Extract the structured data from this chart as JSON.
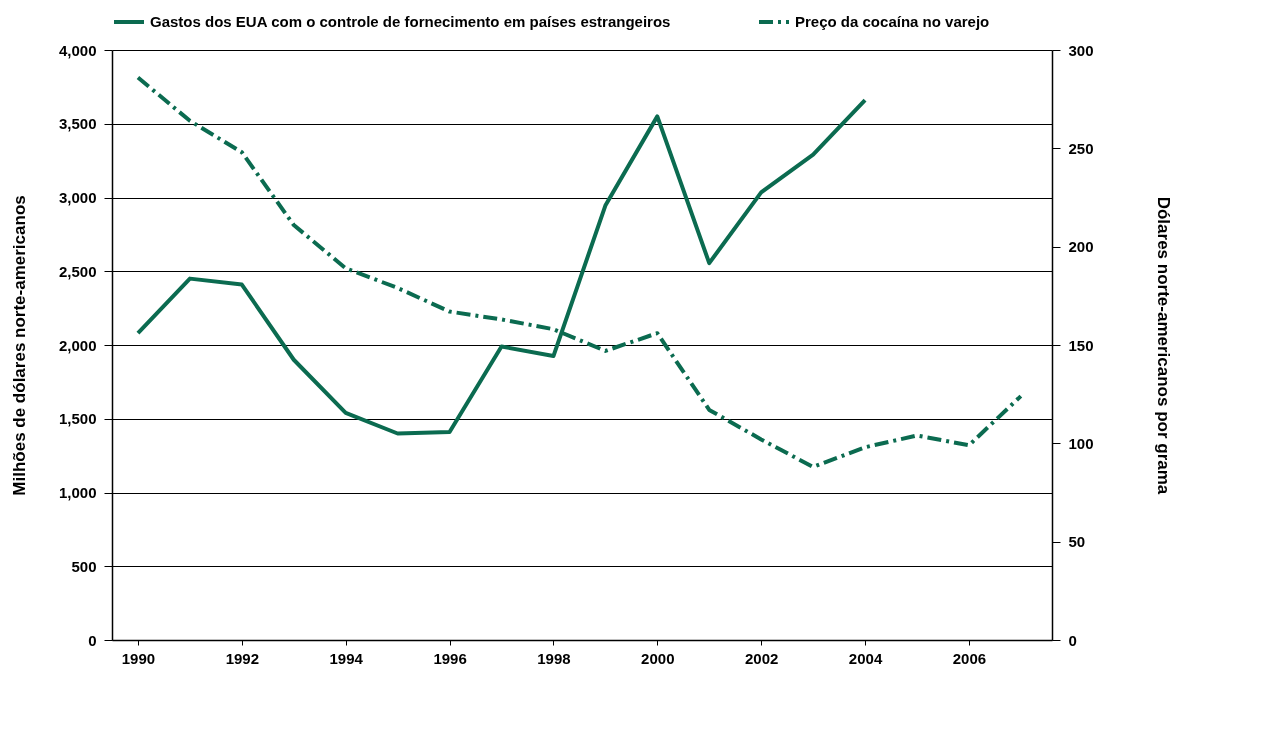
{
  "chart_data": {
    "type": "line",
    "ylabel": "Milhões de dólares norte-americanos",
    "y2label": "Dólares norte-americanos por grama",
    "x": [
      1990,
      1991,
      1992,
      1993,
      1994,
      1995,
      1996,
      1997,
      1998,
      1999,
      2000,
      2001,
      2002,
      2003,
      2004,
      2005,
      2006,
      2007
    ],
    "xlim": [
      1989.5,
      2007.6
    ],
    "xticks": [
      1990,
      1992,
      1994,
      1996,
      1998,
      2000,
      2002,
      2004,
      2006
    ],
    "ylim": [
      0,
      4000
    ],
    "yticks": [
      0,
      500,
      {
        "value": 1000,
        "label": "1,000"
      },
      {
        "value": 1500,
        "label": "1,500"
      },
      {
        "value": 2000,
        "label": "2,000"
      },
      {
        "value": 2500,
        "label": "2,500"
      },
      {
        "value": 3000,
        "label": "3,000"
      },
      {
        "value": 3500,
        "label": "3,500"
      },
      {
        "value": 4000,
        "label": "4,000"
      }
    ],
    "y2lim": [
      0,
      300
    ],
    "y2ticks": [
      0,
      50,
      100,
      150,
      200,
      250,
      300
    ],
    "grid": "y",
    "legend": "top",
    "marker": "none",
    "series": [
      {
        "name": "Gastos dos EUA com o controle de fornecimento em países estrangeiros",
        "color": "#0b6b50",
        "line_style": "solid",
        "values": [
          2080,
          2450,
          2410,
          1900,
          1540,
          1400,
          1410,
          1990,
          1925,
          2945,
          3550,
          2555,
          3035,
          3290,
          3660,
          null,
          null,
          null
        ]
      },
      {
        "name": "Preço da cocaína no varejo",
        "color": "#0b6b50",
        "line_style": "dashed",
        "axis": "y2",
        "values": [
          286,
          264,
          248,
          211,
          189,
          179,
          167,
          163,
          158,
          147,
          156,
          117,
          102,
          88,
          98,
          104,
          99,
          124
        ]
      }
    ]
  }
}
